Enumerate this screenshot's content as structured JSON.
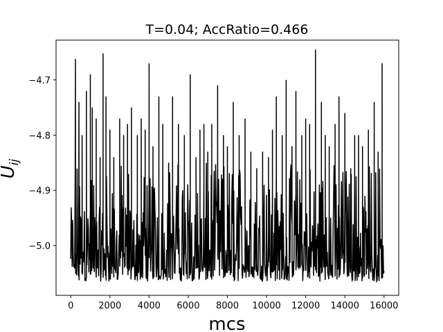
{
  "chart_data": {
    "type": "line",
    "title": "T=0.04; AccRatio=0.466",
    "xlabel": "mcs",
    "ylabel_main": "U",
    "ylabel_sub": "ij",
    "xlim": [
      -750,
      16750
    ],
    "ylim": [
      -5.09,
      -4.628
    ],
    "xticks": [
      0,
      2000,
      4000,
      6000,
      8000,
      10000,
      12000,
      14000,
      16000
    ],
    "xtick_labels": [
      "0",
      "2000",
      "4000",
      "6000",
      "8000",
      "10000",
      "12000",
      "14000",
      "16000"
    ],
    "yticks": [
      -4.7,
      -4.8,
      -4.9,
      -5.0
    ],
    "ytick_labels": [
      "−4.7",
      "−4.8",
      "−4.9",
      "−5.0"
    ],
    "grid": false,
    "line_color": "#000000",
    "series": [
      {
        "x_start": 0,
        "x_end": 16000,
        "x_step": 25,
        "baseline_range": [
          -5.065,
          -4.93
        ],
        "spikes": [
          [
            240,
            -4.662
          ],
          [
            420,
            -4.74
          ],
          [
            580,
            -4.8
          ],
          [
            800,
            -4.72
          ],
          [
            1000,
            -4.69
          ],
          [
            1100,
            -4.75
          ],
          [
            1300,
            -4.77
          ],
          [
            1500,
            -4.84
          ],
          [
            1650,
            -4.652
          ],
          [
            1800,
            -4.73
          ],
          [
            2000,
            -4.79
          ],
          [
            2200,
            -4.84
          ],
          [
            2500,
            -4.77
          ],
          [
            2700,
            -4.8
          ],
          [
            2900,
            -4.78
          ],
          [
            3100,
            -4.75
          ],
          [
            3400,
            -4.8
          ],
          [
            3600,
            -4.77
          ],
          [
            3800,
            -4.79
          ],
          [
            4000,
            -4.67
          ],
          [
            4200,
            -4.82
          ],
          [
            4500,
            -4.73
          ],
          [
            4700,
            -4.78
          ],
          [
            5000,
            -4.85
          ],
          [
            5200,
            -4.73
          ],
          [
            5500,
            -4.78
          ],
          [
            5800,
            -4.8
          ],
          [
            6100,
            -4.69
          ],
          [
            6400,
            -4.84
          ],
          [
            6600,
            -4.79
          ],
          [
            6800,
            -4.78
          ],
          [
            7000,
            -4.83
          ],
          [
            7200,
            -4.78
          ],
          [
            7500,
            -4.71
          ],
          [
            7800,
            -4.8
          ],
          [
            8000,
            -4.82
          ],
          [
            8300,
            -4.74
          ],
          [
            8600,
            -4.8
          ],
          [
            8900,
            -4.77
          ],
          [
            9200,
            -4.83
          ],
          [
            9500,
            -4.86
          ],
          [
            9800,
            -4.83
          ],
          [
            10100,
            -4.84
          ],
          [
            10300,
            -4.79
          ],
          [
            10500,
            -4.73
          ],
          [
            10800,
            -4.8
          ],
          [
            11000,
            -4.7
          ],
          [
            11300,
            -4.82
          ],
          [
            11500,
            -4.72
          ],
          [
            11800,
            -4.8
          ],
          [
            12000,
            -4.77
          ],
          [
            12200,
            -4.78
          ],
          [
            12500,
            -4.645
          ],
          [
            12800,
            -4.74
          ],
          [
            13000,
            -4.8
          ],
          [
            13200,
            -4.82
          ],
          [
            13500,
            -4.78
          ],
          [
            13700,
            -4.73
          ],
          [
            14000,
            -4.76
          ],
          [
            14300,
            -4.86
          ],
          [
            14500,
            -4.8
          ],
          [
            14700,
            -4.8
          ],
          [
            14900,
            -4.82
          ],
          [
            15200,
            -4.79
          ],
          [
            15500,
            -4.74
          ],
          [
            15700,
            -4.83
          ],
          [
            15900,
            -4.67
          ]
        ]
      }
    ]
  }
}
